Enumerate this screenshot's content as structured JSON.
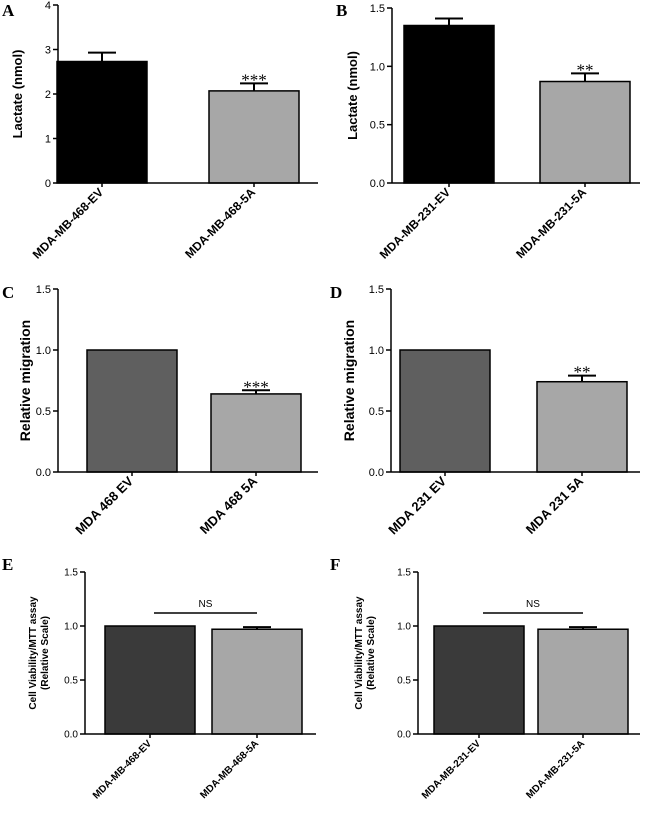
{
  "figure": {
    "panels": [
      {
        "letter": "A"
      },
      {
        "letter": "B"
      },
      {
        "letter": "C"
      },
      {
        "letter": "D"
      },
      {
        "letter": "E"
      },
      {
        "letter": "F"
      }
    ]
  },
  "chart_data": [
    {
      "type": "bar",
      "panel": "A",
      "title": "",
      "xlabel": "",
      "ylabel": "Lactate (nmol)",
      "ylim": [
        0,
        4
      ],
      "yticks": [
        0,
        1,
        2,
        3,
        4
      ],
      "ytick_labels": [
        "0",
        "1",
        "2",
        "3",
        "4"
      ],
      "categories": [
        "MDA-MB-468-EV",
        "MDA-MB-468-5A"
      ],
      "values": [
        2.73,
        2.07
      ],
      "errors": [
        0.2,
        0.17
      ],
      "bar_colors": [
        "#000000",
        "#a7a7a7"
      ],
      "annotations": [
        "",
        "***"
      ]
    },
    {
      "type": "bar",
      "panel": "B",
      "title": "",
      "xlabel": "",
      "ylabel": "Lactate (nmol)",
      "ylim": [
        0,
        1.5
      ],
      "yticks": [
        0,
        0.5,
        1,
        1.5
      ],
      "ytick_labels": [
        "0.0",
        "0.5",
        "1.0",
        "1.5"
      ],
      "categories": [
        "MDA-MB-231-EV",
        "MDA-MB-231-5A"
      ],
      "values": [
        1.35,
        0.87
      ],
      "errors": [
        0.06,
        0.07
      ],
      "bar_colors": [
        "#000000",
        "#a7a7a7"
      ],
      "annotations": [
        "",
        "**"
      ]
    },
    {
      "type": "bar",
      "panel": "C",
      "title": "",
      "xlabel": "",
      "ylabel": "Relative migration",
      "ylim": [
        0,
        1.5
      ],
      "yticks": [
        0,
        0.5,
        1,
        1.5
      ],
      "ytick_labels": [
        "0.0",
        "0.5",
        "1.0",
        "1.5"
      ],
      "categories": [
        "MDA 468 EV",
        "MDA 468 5A"
      ],
      "values": [
        1.0,
        0.64
      ],
      "errors": [
        0,
        0.03
      ],
      "bar_colors": [
        "#5f5f5f",
        "#a7a7a7"
      ],
      "annotations": [
        "",
        "***"
      ]
    },
    {
      "type": "bar",
      "panel": "D",
      "title": "",
      "xlabel": "",
      "ylabel": "Relative migration",
      "ylim": [
        0,
        1.5
      ],
      "yticks": [
        0,
        0.5,
        1,
        1.5
      ],
      "ytick_labels": [
        "0.0",
        "0.5",
        "1.0",
        "1.5"
      ],
      "categories": [
        "MDA 231 EV",
        "MDA 231 5A"
      ],
      "values": [
        1.0,
        0.74
      ],
      "errors": [
        0,
        0.05
      ],
      "bar_colors": [
        "#5f5f5f",
        "#a7a7a7"
      ],
      "annotations": [
        "",
        "**"
      ]
    },
    {
      "type": "bar",
      "panel": "E",
      "title": "",
      "xlabel": "",
      "ylabel": "Cell Viability/MTT assay (Relative Scale)",
      "ylabel_lines": [
        "Cell Viability/MTT assay",
        "(Relative Scale)"
      ],
      "ylim": [
        0,
        1.5
      ],
      "yticks": [
        0,
        0.5,
        1,
        1.5
      ],
      "ytick_labels": [
        "0.0",
        "0.5",
        "1.0",
        "1.5"
      ],
      "categories": [
        "MDA-MB-468-EV",
        "MDA-MB-468-5A"
      ],
      "values": [
        1.0,
        0.97
      ],
      "errors": [
        0,
        0.02
      ],
      "bar_colors": [
        "#3a3a3a",
        "#a7a7a7"
      ],
      "annotations": [
        "",
        ""
      ],
      "significance": {
        "label": "NS",
        "y": 1.12
      }
    },
    {
      "type": "bar",
      "panel": "F",
      "title": "",
      "xlabel": "",
      "ylabel": "Cell Viability/MTT assay (Relative Scale)",
      "ylabel_lines": [
        "Cell Viability/MTT assay",
        "(Relative Scale)"
      ],
      "ylim": [
        0,
        1.5
      ],
      "yticks": [
        0,
        0.5,
        1,
        1.5
      ],
      "ytick_labels": [
        "0.0",
        "0.5",
        "1.0",
        "1.5"
      ],
      "categories": [
        "MDA-MB-231-EV",
        "MDA-MB-231-5A"
      ],
      "values": [
        1.0,
        0.97
      ],
      "errors": [
        0,
        0.02
      ],
      "bar_colors": [
        "#3a3a3a",
        "#a7a7a7"
      ],
      "annotations": [
        "",
        ""
      ],
      "significance": {
        "label": "NS",
        "y": 1.12
      }
    }
  ]
}
